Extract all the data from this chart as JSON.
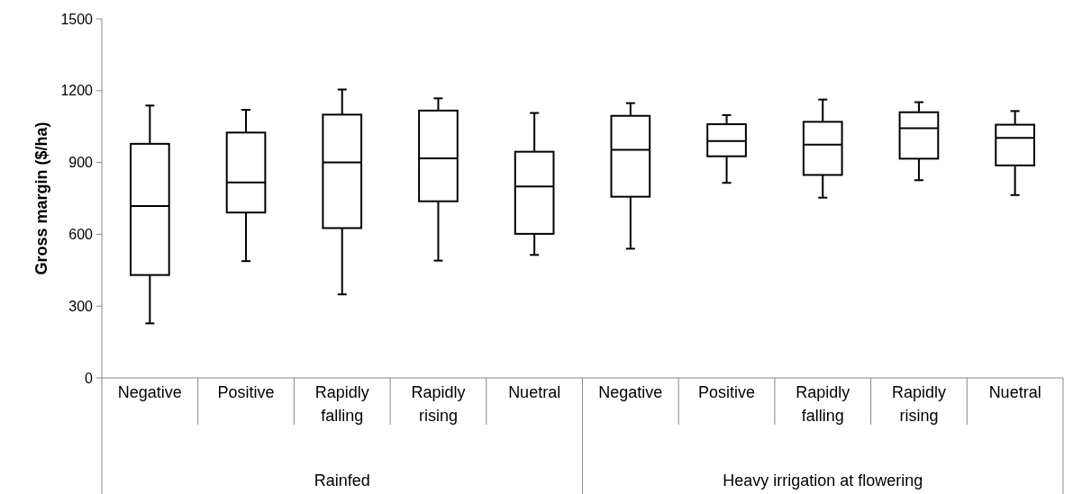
{
  "chart_data": {
    "type": "box",
    "ylabel": "Gross margin ($/ha)",
    "categories": [
      "Negative",
      "Positive",
      "Rapidly falling",
      "Rapidly rising",
      "Nuetral",
      "Negative",
      "Positive",
      "Rapidly falling",
      "Rapidly rising",
      "Nuetral"
    ],
    "boxes": [
      {
        "low": 228,
        "q1": 430,
        "median": 718,
        "q3": 978,
        "high": 1138
      },
      {
        "low": 488,
        "q1": 691,
        "median": 817,
        "q3": 1025,
        "high": 1120
      },
      {
        "low": 349,
        "q1": 626,
        "median": 900,
        "q3": 1100,
        "high": 1205
      },
      {
        "low": 490,
        "q1": 738,
        "median": 917,
        "q3": 1117,
        "high": 1168
      },
      {
        "low": 514,
        "q1": 602,
        "median": 800,
        "q3": 945,
        "high": 1107
      },
      {
        "low": 540,
        "q1": 757,
        "median": 953,
        "q3": 1095,
        "high": 1148
      },
      {
        "low": 815,
        "q1": 926,
        "median": 990,
        "q3": 1060,
        "high": 1098
      },
      {
        "low": 753,
        "q1": 848,
        "median": 975,
        "q3": 1070,
        "high": 1163
      },
      {
        "low": 826,
        "q1": 916,
        "median": 1043,
        "q3": 1110,
        "high": 1152
      },
      {
        "low": 764,
        "q1": 888,
        "median": 1003,
        "q3": 1058,
        "high": 1115
      }
    ],
    "color": "#000000",
    "ylim": [
      0,
      1500
    ],
    "yticks": [
      0,
      300,
      600,
      900,
      1200,
      1500
    ],
    "annotations": [
      "Rainfed",
      "Heavy irrigation at flowering"
    ]
  }
}
